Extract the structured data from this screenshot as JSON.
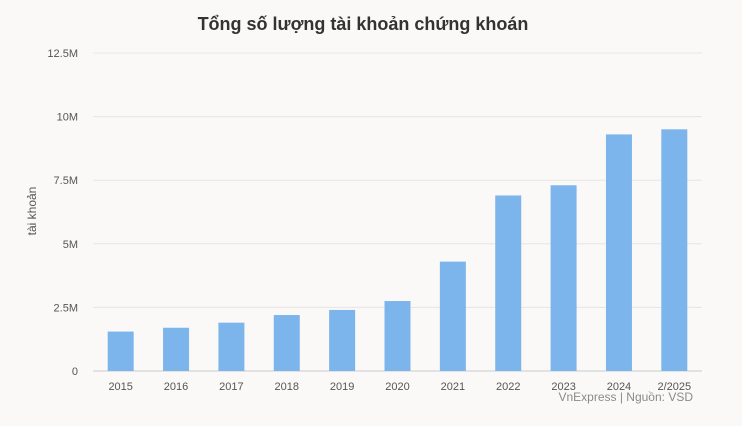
{
  "chart_data": {
    "type": "bar",
    "title": "Tổng số lượng tài khoản chứng khoán",
    "ylabel": "tài khoản",
    "xlabel": "",
    "categories": [
      "2015",
      "2016",
      "2017",
      "2018",
      "2019",
      "2020",
      "2021",
      "2022",
      "2023",
      "2024",
      "2/2025"
    ],
    "values": [
      1.55,
      1.7,
      1.9,
      2.2,
      2.4,
      2.75,
      4.3,
      6.9,
      7.3,
      9.3,
      9.5
    ],
    "unit": "M",
    "ylim": [
      0,
      12.5
    ],
    "yticks": [
      0,
      2.5,
      5,
      7.5,
      10,
      12.5
    ],
    "ytick_labels": [
      "0",
      "2.5M",
      "5M",
      "7.5M",
      "10M",
      "12.5M"
    ],
    "grid": true,
    "bar_color": "#7cb5ec",
    "source": "VnExpress | Nguồn: VSD"
  }
}
